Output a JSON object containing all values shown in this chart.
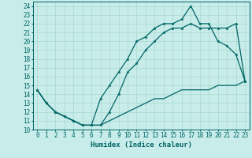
{
  "xlabel": "Humidex (Indice chaleur)",
  "bg_color": "#c8ece9",
  "grid_color": "#a8d8d0",
  "line_color": "#006666",
  "xlim": [
    -0.5,
    23.5
  ],
  "ylim": [
    10,
    24.5
  ],
  "xticks": [
    0,
    1,
    2,
    3,
    4,
    5,
    6,
    7,
    8,
    9,
    10,
    11,
    12,
    13,
    14,
    15,
    16,
    17,
    18,
    19,
    20,
    21,
    22,
    23
  ],
  "yticks": [
    10,
    11,
    12,
    13,
    14,
    15,
    16,
    17,
    18,
    19,
    20,
    21,
    22,
    23,
    24
  ],
  "line1": {
    "x": [
      0,
      1,
      2,
      3,
      4,
      5,
      6,
      7,
      8,
      9,
      10,
      11,
      12,
      13,
      14,
      15,
      16,
      17,
      18,
      19,
      20,
      21,
      22,
      23
    ],
    "y": [
      14.5,
      13.0,
      12.0,
      11.5,
      11.0,
      10.5,
      10.5,
      13.5,
      15.0,
      16.5,
      18.0,
      20.0,
      20.5,
      21.5,
      22.0,
      22.0,
      22.5,
      24.0,
      22.0,
      22.0,
      20.0,
      19.5,
      18.5,
      15.5
    ]
  },
  "line2": {
    "x": [
      0,
      1,
      2,
      3,
      4,
      5,
      6,
      7,
      8,
      9,
      10,
      11,
      12,
      13,
      14,
      15,
      16,
      17,
      18,
      19,
      20,
      21,
      22,
      23
    ],
    "y": [
      14.5,
      13.0,
      12.0,
      11.5,
      11.0,
      10.5,
      10.5,
      10.5,
      12.0,
      14.0,
      16.5,
      17.5,
      19.0,
      20.0,
      21.0,
      21.5,
      21.5,
      22.0,
      21.5,
      21.5,
      21.5,
      21.5,
      22.0,
      15.5
    ]
  },
  "line3": {
    "x": [
      0,
      1,
      2,
      3,
      4,
      5,
      6,
      7,
      8,
      9,
      10,
      11,
      12,
      13,
      14,
      15,
      16,
      17,
      18,
      19,
      20,
      21,
      22,
      23
    ],
    "y": [
      14.5,
      13.0,
      12.0,
      11.5,
      11.0,
      10.5,
      10.5,
      10.5,
      11.0,
      11.5,
      12.0,
      12.5,
      13.0,
      13.5,
      13.5,
      14.0,
      14.5,
      14.5,
      14.5,
      14.5,
      15.0,
      15.0,
      15.0,
      15.5
    ]
  },
  "marker_size": 2.5,
  "line_width": 0.9,
  "font_size_ticks": 5.5,
  "font_size_label": 6.5
}
